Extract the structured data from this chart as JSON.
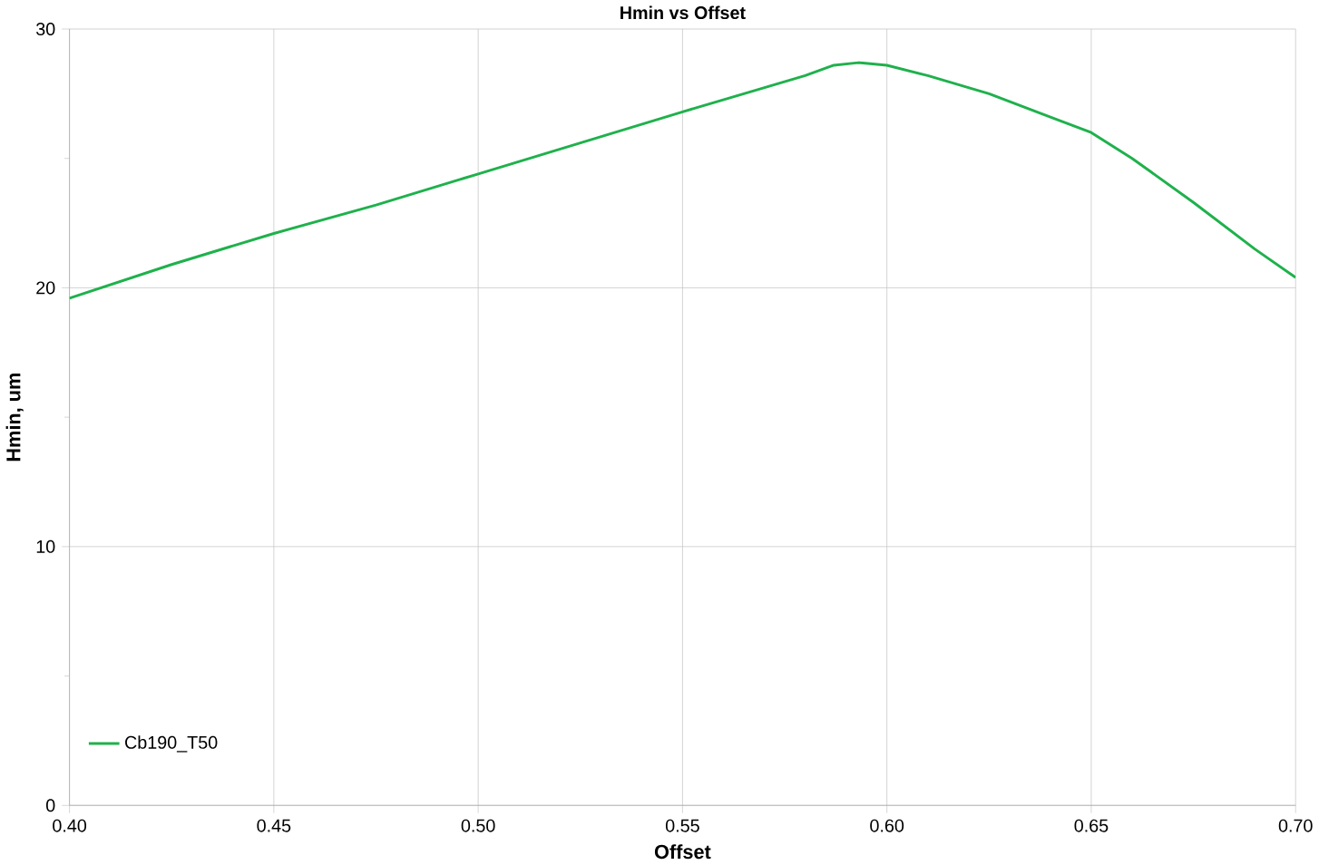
{
  "chart_data": {
    "type": "line",
    "title": "Hmin vs Offset",
    "xlabel": "Offset",
    "ylabel": "Hmin, um",
    "series": [
      {
        "name": "Cb190_T50",
        "color": "#1fb14c",
        "x": [
          0.4,
          0.425,
          0.45,
          0.475,
          0.5,
          0.525,
          0.55,
          0.565,
          0.58,
          0.587,
          0.593,
          0.6,
          0.61,
          0.625,
          0.64,
          0.65,
          0.66,
          0.675,
          0.69,
          0.7
        ],
        "values": [
          19.6,
          20.9,
          22.1,
          23.2,
          24.4,
          25.6,
          26.8,
          27.5,
          28.2,
          28.6,
          28.7,
          28.6,
          28.2,
          27.5,
          26.6,
          26.0,
          25.0,
          23.3,
          21.5,
          20.4
        ]
      }
    ],
    "xlim": [
      0.4,
      0.7
    ],
    "ylim": [
      0,
      30
    ],
    "xticks": [
      {
        "value": 0.4,
        "label": "0.40"
      },
      {
        "value": 0.45,
        "label": "0.45"
      },
      {
        "value": 0.5,
        "label": "0.50"
      },
      {
        "value": 0.55,
        "label": "0.55"
      },
      {
        "value": 0.6,
        "label": "0.60"
      },
      {
        "value": 0.65,
        "label": "0.65"
      },
      {
        "value": 0.7,
        "label": "0.70"
      }
    ],
    "yticks": [
      0,
      10,
      20,
      30
    ],
    "grid": true,
    "legend": "bottom left",
    "marker": "none",
    "line_style": "solid"
  }
}
